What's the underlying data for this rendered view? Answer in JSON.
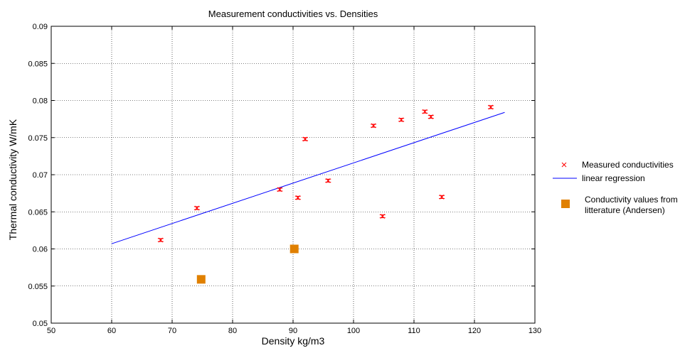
{
  "chart_data": {
    "type": "scatter",
    "title": "Measurement conductivities vs. Densities",
    "xlabel": "Density kg/m3",
    "ylabel": "Thermal conductivity W/mK",
    "xlim": [
      50,
      130
    ],
    "ylim": [
      0.05,
      0.09
    ],
    "xticks": [
      "50",
      "60",
      "70",
      "80",
      "90",
      "100",
      "110",
      "120",
      "130"
    ],
    "yticks": [
      "0.05",
      "0.055",
      "0.06",
      "0.065",
      "0.07",
      "0.075",
      "0.08",
      "0.085",
      "0.09"
    ],
    "grid": true,
    "legend_position": "outside-right",
    "series": [
      {
        "name": "Measured conductivities",
        "marker": "x",
        "color": "#ff0000",
        "x": [
          68.1,
          74.1,
          87.8,
          90.8,
          92.0,
          95.8,
          103.3,
          104.8,
          107.9,
          111.8,
          112.8,
          114.6,
          122.7
        ],
        "y": [
          0.0612,
          0.0655,
          0.068,
          0.0669,
          0.0748,
          0.0692,
          0.0766,
          0.0644,
          0.0774,
          0.0785,
          0.0778,
          0.067,
          0.0791
        ],
        "error": 0.0002
      },
      {
        "name": "linear regression",
        "kind": "line",
        "color": "#0000ff",
        "x": [
          60,
          125
        ],
        "y": [
          0.0607,
          0.0784
        ]
      },
      {
        "name": "Conductivity values from litterature (Andersen)",
        "name_lines": [
          "Conductivity values from",
          "litterature (Andersen)"
        ],
        "marker": "square",
        "color": "#e08000",
        "x": [
          74.8,
          90.2
        ],
        "y": [
          0.0559,
          0.06
        ]
      }
    ]
  }
}
